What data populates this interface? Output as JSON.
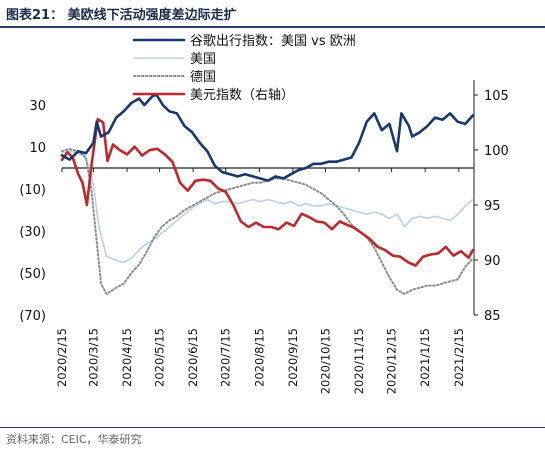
{
  "title": "图表21： 美欧线下活动强度差边际走扩",
  "source": "资料来源：CEIC，华泰研究",
  "colors": {
    "us_minus_eu": "#17376e",
    "us": "#b7d2e6",
    "germany": "#8c8c8c",
    "price_index": "#c0262c"
  },
  "chart_data": {
    "type": "line",
    "legend_placement": "top-center",
    "grid": false,
    "x_ticks": [
      "2020/2/15",
      "2020/3/15",
      "2020/4/15",
      "2020/5/15",
      "2020/6/15",
      "2020/7/15",
      "2020/8/15",
      "2020/9/15",
      "2020/10/15",
      "2020/11/15",
      "2020/12/15",
      "2021/1/15",
      "2021/2/15"
    ],
    "x_range": [
      "2020-02-15",
      "2021-03-01"
    ],
    "y_left": {
      "ticks": [
        "30",
        "10",
        "(10)",
        "(30)",
        "(50)",
        "(70)"
      ],
      "tick_values": [
        30,
        10,
        -10,
        -30,
        -50,
        -70
      ],
      "range": [
        -70,
        40
      ]
    },
    "y_right": {
      "ticks": [
        "105",
        "100",
        "95",
        "90",
        "85"
      ],
      "tick_values": [
        105,
        100,
        95,
        90,
        85
      ],
      "range": [
        85,
        106
      ]
    },
    "series": [
      {
        "name": "谷歌出行指数：美国 vs 欧洲",
        "axis": "left",
        "style": "solid-thick",
        "color": "#17376e",
        "points": [
          [
            "2020-02-15",
            6
          ],
          [
            "2020-02-22",
            4
          ],
          [
            "2020-03-01",
            8
          ],
          [
            "2020-03-08",
            7
          ],
          [
            "2020-03-15",
            12
          ],
          [
            "2020-03-18",
            22
          ],
          [
            "2020-03-22",
            15
          ],
          [
            "2020-03-29",
            17
          ],
          [
            "2020-04-05",
            24
          ],
          [
            "2020-04-12",
            27
          ],
          [
            "2020-04-19",
            31
          ],
          [
            "2020-04-26",
            33
          ],
          [
            "2020-05-01",
            30
          ],
          [
            "2020-05-08",
            34
          ],
          [
            "2020-05-12",
            35
          ],
          [
            "2020-05-18",
            30
          ],
          [
            "2020-05-24",
            27
          ],
          [
            "2020-05-31",
            26
          ],
          [
            "2020-06-07",
            20
          ],
          [
            "2020-06-14",
            17
          ],
          [
            "2020-06-21",
            12
          ],
          [
            "2020-06-28",
            8
          ],
          [
            "2020-07-05",
            1
          ],
          [
            "2020-07-12",
            -2
          ],
          [
            "2020-07-19",
            -3
          ],
          [
            "2020-07-26",
            -4
          ],
          [
            "2020-08-02",
            -3
          ],
          [
            "2020-08-09",
            -4
          ],
          [
            "2020-08-16",
            -5
          ],
          [
            "2020-08-23",
            -6
          ],
          [
            "2020-08-30",
            -4
          ],
          [
            "2020-09-06",
            -5
          ],
          [
            "2020-09-13",
            -3
          ],
          [
            "2020-09-20",
            -1
          ],
          [
            "2020-09-27",
            0
          ],
          [
            "2020-10-04",
            2
          ],
          [
            "2020-10-11",
            2
          ],
          [
            "2020-10-18",
            3
          ],
          [
            "2020-10-25",
            3
          ],
          [
            "2020-11-01",
            4
          ],
          [
            "2020-11-08",
            5
          ],
          [
            "2020-11-15",
            12
          ],
          [
            "2020-11-22",
            22
          ],
          [
            "2020-11-29",
            26
          ],
          [
            "2020-12-06",
            18
          ],
          [
            "2020-12-13",
            21
          ],
          [
            "2020-12-20",
            8
          ],
          [
            "2020-12-24",
            26
          ],
          [
            "2020-12-31",
            20
          ],
          [
            "2021-01-03",
            15
          ],
          [
            "2021-01-10",
            17
          ],
          [
            "2021-01-17",
            20
          ],
          [
            "2021-01-24",
            24
          ],
          [
            "2021-01-31",
            23
          ],
          [
            "2021-02-07",
            26
          ],
          [
            "2021-02-14",
            22
          ],
          [
            "2021-02-21",
            21
          ],
          [
            "2021-02-28",
            25
          ]
        ]
      },
      {
        "name": "美国",
        "axis": "left",
        "style": "solid-thin",
        "color": "#b7d2e6",
        "points": [
          [
            "2020-02-15",
            7
          ],
          [
            "2020-02-22",
            8
          ],
          [
            "2020-03-01",
            7
          ],
          [
            "2020-03-08",
            5
          ],
          [
            "2020-03-15",
            -8
          ],
          [
            "2020-03-20",
            -28
          ],
          [
            "2020-03-27",
            -42
          ],
          [
            "2020-04-05",
            -44
          ],
          [
            "2020-04-12",
            -45
          ],
          [
            "2020-04-19",
            -43
          ],
          [
            "2020-04-26",
            -39
          ],
          [
            "2020-05-03",
            -36
          ],
          [
            "2020-05-10",
            -34
          ],
          [
            "2020-05-17",
            -31
          ],
          [
            "2020-05-24",
            -28
          ],
          [
            "2020-05-31",
            -25
          ],
          [
            "2020-06-07",
            -22
          ],
          [
            "2020-06-14",
            -19
          ],
          [
            "2020-06-21",
            -17
          ],
          [
            "2020-06-28",
            -15
          ],
          [
            "2020-07-05",
            -17
          ],
          [
            "2020-07-12",
            -16
          ],
          [
            "2020-07-19",
            -16
          ],
          [
            "2020-07-26",
            -17
          ],
          [
            "2020-08-02",
            -16
          ],
          [
            "2020-08-09",
            -15
          ],
          [
            "2020-08-16",
            -16
          ],
          [
            "2020-08-23",
            -15
          ],
          [
            "2020-08-30",
            -16
          ],
          [
            "2020-09-06",
            -17
          ],
          [
            "2020-09-13",
            -16
          ],
          [
            "2020-09-20",
            -18
          ],
          [
            "2020-09-27",
            -17
          ],
          [
            "2020-10-04",
            -18
          ],
          [
            "2020-10-11",
            -18
          ],
          [
            "2020-10-18",
            -17
          ],
          [
            "2020-10-25",
            -18
          ],
          [
            "2020-11-01",
            -19
          ],
          [
            "2020-11-08",
            -20
          ],
          [
            "2020-11-15",
            -21
          ],
          [
            "2020-11-22",
            -22
          ],
          [
            "2020-11-29",
            -21
          ],
          [
            "2020-12-06",
            -22
          ],
          [
            "2020-12-13",
            -24
          ],
          [
            "2020-12-20",
            -22
          ],
          [
            "2020-12-27",
            -28
          ],
          [
            "2021-01-03",
            -24
          ],
          [
            "2021-01-10",
            -23
          ],
          [
            "2021-01-17",
            -24
          ],
          [
            "2021-01-24",
            -23
          ],
          [
            "2021-01-31",
            -24
          ],
          [
            "2021-02-07",
            -25
          ],
          [
            "2021-02-14",
            -22
          ],
          [
            "2021-02-21",
            -18
          ],
          [
            "2021-02-28",
            -15
          ]
        ]
      },
      {
        "name": "德国",
        "axis": "left",
        "style": "dotted",
        "color": "#8c8c8c",
        "points": [
          [
            "2020-02-15",
            8
          ],
          [
            "2020-02-22",
            9
          ],
          [
            "2020-03-01",
            8
          ],
          [
            "2020-03-08",
            5
          ],
          [
            "2020-03-13",
            -10
          ],
          [
            "2020-03-18",
            -35
          ],
          [
            "2020-03-22",
            -55
          ],
          [
            "2020-03-27",
            -60
          ],
          [
            "2020-04-05",
            -57
          ],
          [
            "2020-04-12",
            -55
          ],
          [
            "2020-04-19",
            -50
          ],
          [
            "2020-04-26",
            -46
          ],
          [
            "2020-05-03",
            -40
          ],
          [
            "2020-05-10",
            -33
          ],
          [
            "2020-05-17",
            -28
          ],
          [
            "2020-05-24",
            -25
          ],
          [
            "2020-05-31",
            -23
          ],
          [
            "2020-06-07",
            -20
          ],
          [
            "2020-06-14",
            -18
          ],
          [
            "2020-06-21",
            -16
          ],
          [
            "2020-06-28",
            -14
          ],
          [
            "2020-07-05",
            -12
          ],
          [
            "2020-07-12",
            -11
          ],
          [
            "2020-07-19",
            -10
          ],
          [
            "2020-07-26",
            -9
          ],
          [
            "2020-08-02",
            -8
          ],
          [
            "2020-08-09",
            -7
          ],
          [
            "2020-08-16",
            -7
          ],
          [
            "2020-08-23",
            -6
          ],
          [
            "2020-08-30",
            -5
          ],
          [
            "2020-09-06",
            -5
          ],
          [
            "2020-09-13",
            -6
          ],
          [
            "2020-09-20",
            -7
          ],
          [
            "2020-09-27",
            -8
          ],
          [
            "2020-10-04",
            -10
          ],
          [
            "2020-10-11",
            -12
          ],
          [
            "2020-10-18",
            -15
          ],
          [
            "2020-10-25",
            -18
          ],
          [
            "2020-11-01",
            -22
          ],
          [
            "2020-11-08",
            -27
          ],
          [
            "2020-11-15",
            -30
          ],
          [
            "2020-11-22",
            -33
          ],
          [
            "2020-11-29",
            -38
          ],
          [
            "2020-12-06",
            -45
          ],
          [
            "2020-12-13",
            -52
          ],
          [
            "2020-12-20",
            -58
          ],
          [
            "2020-12-27",
            -60
          ],
          [
            "2021-01-03",
            -58
          ],
          [
            "2021-01-10",
            -57
          ],
          [
            "2021-01-17",
            -56
          ],
          [
            "2021-01-24",
            -56
          ],
          [
            "2021-01-31",
            -55
          ],
          [
            "2021-02-07",
            -54
          ],
          [
            "2021-02-14",
            -53
          ],
          [
            "2021-02-21",
            -47
          ],
          [
            "2021-02-28",
            -43
          ]
        ]
      },
      {
        "name": "美元指数（右轴）",
        "axis": "right",
        "style": "solid-thick",
        "color": "#c0262c",
        "points": [
          [
            "2020-02-15",
            99.1
          ],
          [
            "2020-02-20",
            99.8
          ],
          [
            "2020-02-25",
            99.3
          ],
          [
            "2020-03-01",
            97.8
          ],
          [
            "2020-03-05",
            97.0
          ],
          [
            "2020-03-09",
            95.0
          ],
          [
            "2020-03-13",
            98.5
          ],
          [
            "2020-03-19",
            102.8
          ],
          [
            "2020-03-24",
            102.5
          ],
          [
            "2020-03-28",
            99.0
          ],
          [
            "2020-04-02",
            100.5
          ],
          [
            "2020-04-08",
            100.0
          ],
          [
            "2020-04-15",
            99.6
          ],
          [
            "2020-04-22",
            100.3
          ],
          [
            "2020-04-29",
            99.5
          ],
          [
            "2020-05-06",
            100.0
          ],
          [
            "2020-05-13",
            100.1
          ],
          [
            "2020-05-20",
            99.6
          ],
          [
            "2020-05-27",
            98.9
          ],
          [
            "2020-06-03",
            97.0
          ],
          [
            "2020-06-10",
            96.3
          ],
          [
            "2020-06-17",
            97.2
          ],
          [
            "2020-06-24",
            97.3
          ],
          [
            "2020-07-01",
            97.2
          ],
          [
            "2020-07-08",
            96.5
          ],
          [
            "2020-07-15",
            96.2
          ],
          [
            "2020-07-22",
            95.0
          ],
          [
            "2020-07-29",
            93.5
          ],
          [
            "2020-08-05",
            93.0
          ],
          [
            "2020-08-12",
            93.4
          ],
          [
            "2020-08-19",
            93.0
          ],
          [
            "2020-08-26",
            93.0
          ],
          [
            "2020-09-02",
            92.8
          ],
          [
            "2020-09-09",
            93.4
          ],
          [
            "2020-09-16",
            93.1
          ],
          [
            "2020-09-23",
            94.2
          ],
          [
            "2020-09-30",
            93.9
          ],
          [
            "2020-10-07",
            93.5
          ],
          [
            "2020-10-14",
            93.4
          ],
          [
            "2020-10-21",
            92.8
          ],
          [
            "2020-10-28",
            93.5
          ],
          [
            "2020-11-04",
            93.2
          ],
          [
            "2020-11-11",
            92.9
          ],
          [
            "2020-11-18",
            92.4
          ],
          [
            "2020-11-25",
            91.9
          ],
          [
            "2020-12-02",
            91.2
          ],
          [
            "2020-12-09",
            90.9
          ],
          [
            "2020-12-16",
            90.4
          ],
          [
            "2020-12-23",
            90.3
          ],
          [
            "2020-12-30",
            89.8
          ],
          [
            "2021-01-06",
            89.5
          ],
          [
            "2021-01-13",
            90.3
          ],
          [
            "2021-01-20",
            90.5
          ],
          [
            "2021-01-27",
            90.6
          ],
          [
            "2021-02-03",
            91.2
          ],
          [
            "2021-02-10",
            90.4
          ],
          [
            "2021-02-17",
            90.8
          ],
          [
            "2021-02-24",
            90.2
          ],
          [
            "2021-02-28",
            90.9
          ]
        ]
      }
    ]
  }
}
